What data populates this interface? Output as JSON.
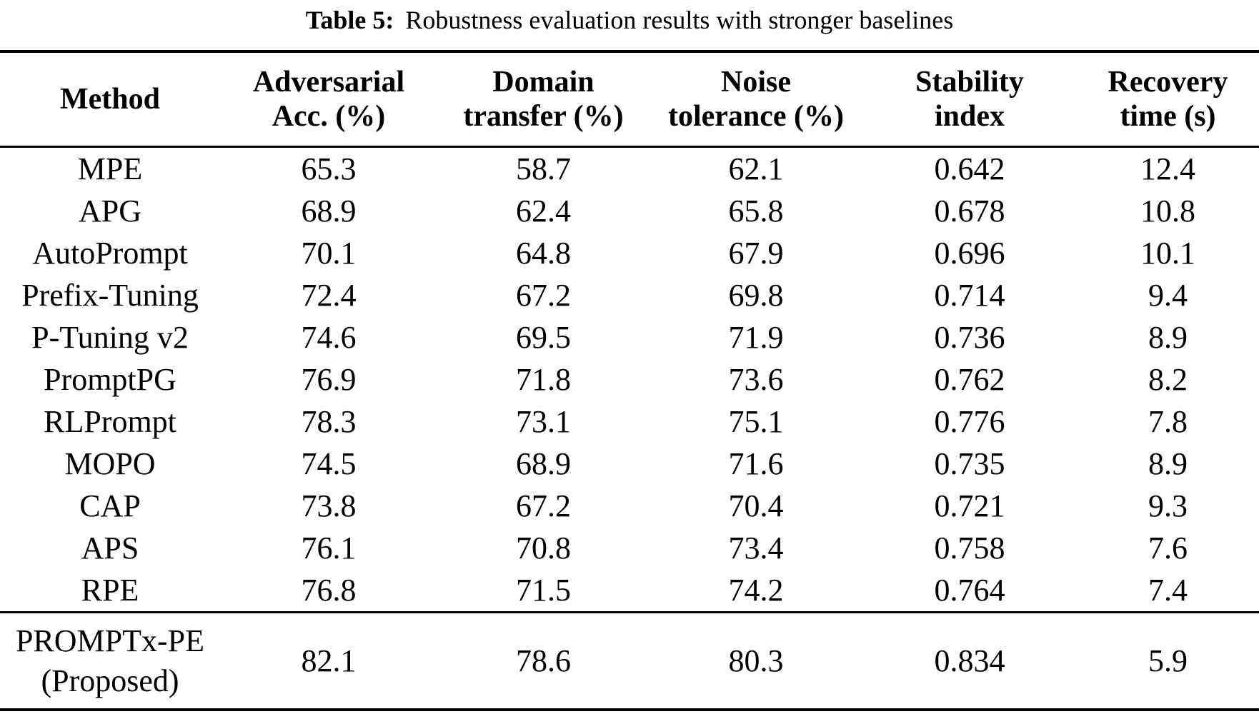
{
  "title": {
    "label": "Table 5:",
    "caption": "Robustness evaluation results with stronger baselines"
  },
  "table": {
    "headers": [
      {
        "line1": "Method",
        "line2": ""
      },
      {
        "line1": "Adversarial",
        "line2": "Acc. (%)"
      },
      {
        "line1": "Domain",
        "line2": "transfer (%)"
      },
      {
        "line1": "Noise",
        "line2": "tolerance (%)"
      },
      {
        "line1": "Stability",
        "line2": "index"
      },
      {
        "line1": "Recovery",
        "line2": "time (s)"
      }
    ],
    "rows": [
      {
        "method": "MPE",
        "adversarial_acc": "65.3",
        "domain_transfer": "58.7",
        "noise_tolerance": "62.1",
        "stability_index": "0.642",
        "recovery_time": "12.4"
      },
      {
        "method": "APG",
        "adversarial_acc": "68.9",
        "domain_transfer": "62.4",
        "noise_tolerance": "65.8",
        "stability_index": "0.678",
        "recovery_time": "10.8"
      },
      {
        "method": "AutoPrompt",
        "adversarial_acc": "70.1",
        "domain_transfer": "64.8",
        "noise_tolerance": "67.9",
        "stability_index": "0.696",
        "recovery_time": "10.1"
      },
      {
        "method": "Prefix-Tuning",
        "adversarial_acc": "72.4",
        "domain_transfer": "67.2",
        "noise_tolerance": "69.8",
        "stability_index": "0.714",
        "recovery_time": "9.4"
      },
      {
        "method": "P-Tuning v2",
        "adversarial_acc": "74.6",
        "domain_transfer": "69.5",
        "noise_tolerance": "71.9",
        "stability_index": "0.736",
        "recovery_time": "8.9"
      },
      {
        "method": "PromptPG",
        "adversarial_acc": "76.9",
        "domain_transfer": "71.8",
        "noise_tolerance": "73.6",
        "stability_index": "0.762",
        "recovery_time": "8.2"
      },
      {
        "method": "RLPrompt",
        "adversarial_acc": "78.3",
        "domain_transfer": "73.1",
        "noise_tolerance": "75.1",
        "stability_index": "0.776",
        "recovery_time": "7.8"
      },
      {
        "method": "MOPO",
        "adversarial_acc": "74.5",
        "domain_transfer": "68.9",
        "noise_tolerance": "71.6",
        "stability_index": "0.735",
        "recovery_time": "8.9"
      },
      {
        "method": "CAP",
        "adversarial_acc": "73.8",
        "domain_transfer": "67.2",
        "noise_tolerance": "70.4",
        "stability_index": "0.721",
        "recovery_time": "9.3"
      },
      {
        "method": "APS",
        "adversarial_acc": "76.1",
        "domain_transfer": "70.8",
        "noise_tolerance": "73.4",
        "stability_index": "0.758",
        "recovery_time": "7.6"
      },
      {
        "method": "RPE",
        "adversarial_acc": "76.8",
        "domain_transfer": "71.5",
        "noise_tolerance": "74.2",
        "stability_index": "0.764",
        "recovery_time": "7.4"
      }
    ],
    "proposed_row": {
      "method_line1": "PROMPTx-PE",
      "method_line2": "(Proposed)",
      "adversarial_acc": "82.1",
      "domain_transfer": "78.6",
      "noise_tolerance": "80.3",
      "stability_index": "0.834",
      "recovery_time": "5.9"
    }
  },
  "colors": {
    "text": "#000000",
    "background": "#ffffff",
    "rule": "#000000"
  }
}
